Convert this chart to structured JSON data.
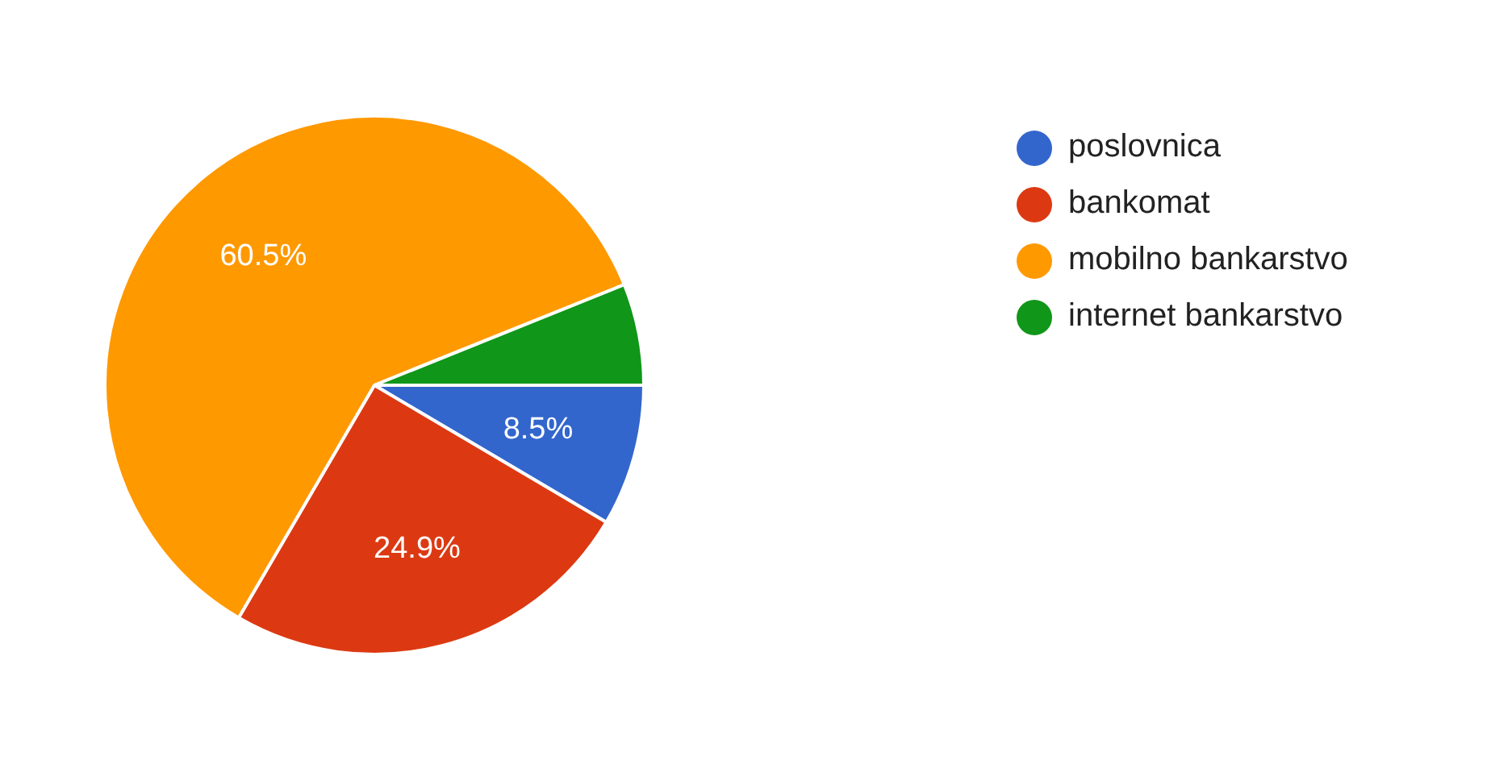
{
  "chart_data": {
    "type": "pie",
    "categories": [
      "poslovnica",
      "bankomat",
      "mobilno bankarstvo",
      "internet bankarstvo"
    ],
    "values": [
      8.5,
      24.9,
      60.5,
      6.1
    ],
    "colors": [
      "#3366cc",
      "#dc3912",
      "#ff9900",
      "#109618"
    ],
    "value_labels": [
      "8.5%",
      "24.9%",
      "60.5%",
      null
    ],
    "legend": "top right"
  }
}
